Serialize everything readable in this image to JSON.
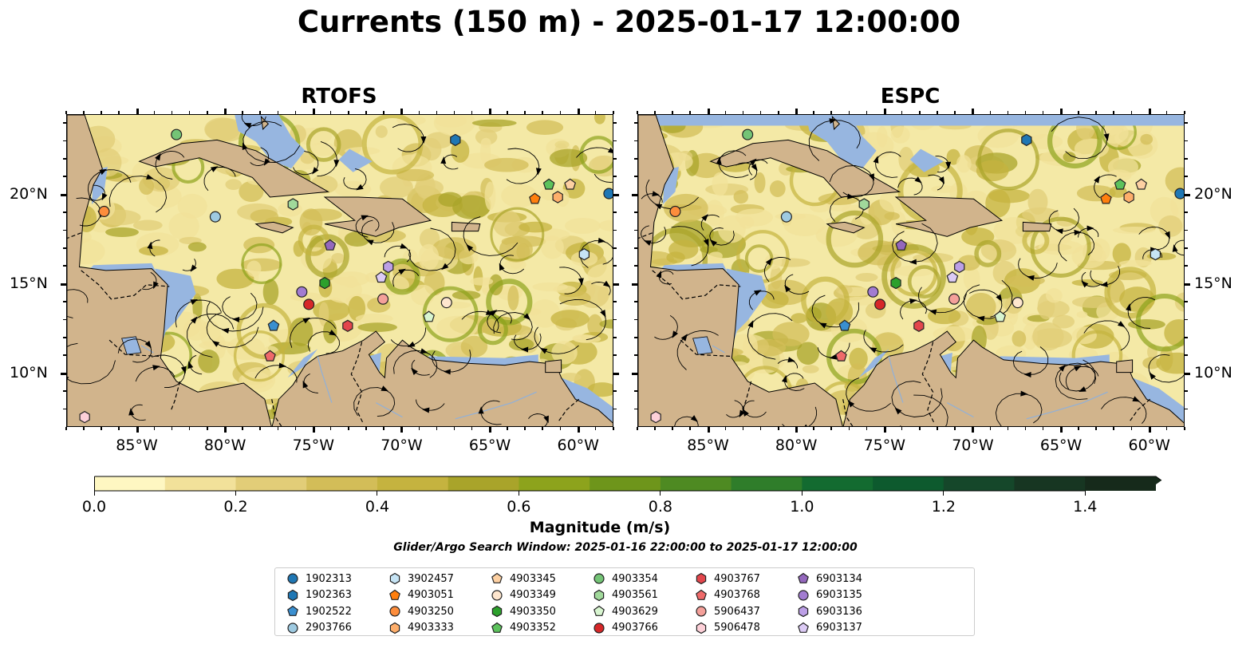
{
  "title": "Currents (150 m) - 2025-01-17 12:00:00",
  "panels": [
    {
      "title": "RTOFS"
    },
    {
      "title": "ESPC"
    }
  ],
  "axes": {
    "x_ticks": [
      "85°W",
      "80°W",
      "75°W",
      "70°W",
      "65°W",
      "60°W"
    ],
    "y_ticks": [
      "20°N",
      "15°N",
      "10°N"
    ]
  },
  "colorbar": {
    "label": "Magnitude (m/s)",
    "ticks": [
      "0.0",
      "0.2",
      "0.4",
      "0.6",
      "0.8",
      "1.0",
      "1.2",
      "1.4"
    ],
    "range": [
      0,
      1.5
    ],
    "extend": "max",
    "colors": [
      "#fef7c2",
      "#f2e19a",
      "#e2cd78",
      "#d3bd58",
      "#c5b33f",
      "#a9a42a",
      "#8da31c",
      "#6e951b",
      "#4e8a22",
      "#2f7d2a",
      "#136b30",
      "#0d5a2e",
      "#15472a",
      "#173622",
      "#162a1b"
    ]
  },
  "search_window": "Glider/Argo Search Window: 2025-01-16 22:00:00 to 2025-01-17 12:00:00",
  "colors": {
    "ocean": "#f4e9a6",
    "land": "#d1b48c",
    "shallow": "#97b6e0"
  },
  "chart_data": {
    "type": "map",
    "projection": "equirectangular",
    "xlim_lon": [
      -89.0,
      -58.0
    ],
    "ylim_lat": [
      7.0,
      24.5
    ],
    "variable": "current magnitude at 150 m",
    "models": [
      "RTOFS",
      "ESPC"
    ],
    "markers": [
      {
        "id": "1902313",
        "shape": "circle",
        "color": "#1f77b4",
        "lon": -58.3,
        "lat": 20.1
      },
      {
        "id": "1902363",
        "shape": "hexagon",
        "color": "#1f77b4",
        "lon": -67.0,
        "lat": 23.1
      },
      {
        "id": "1902522",
        "shape": "pentagon",
        "color": "#3a8fd0",
        "lon": -77.3,
        "lat": 12.7
      },
      {
        "id": "2903766",
        "shape": "circle",
        "color": "#9ecae1",
        "lon": -80.6,
        "lat": 18.8
      },
      {
        "id": "3902457",
        "shape": "hexagon",
        "color": "#c6e4f5",
        "lon": -59.7,
        "lat": 16.7
      },
      {
        "id": "4903051",
        "shape": "pentagon",
        "color": "#ff7f0e",
        "lon": -62.5,
        "lat": 19.8
      },
      {
        "id": "4903250",
        "shape": "circle",
        "color": "#fd8d3c",
        "lon": -86.9,
        "lat": 19.1
      },
      {
        "id": "4903333",
        "shape": "hexagon",
        "color": "#fdae6b",
        "lon": -61.2,
        "lat": 19.9
      },
      {
        "id": "4903345",
        "shape": "pentagon",
        "color": "#fdd0a2",
        "lon": -60.5,
        "lat": 20.6
      },
      {
        "id": "4903349",
        "shape": "circle",
        "color": "#fee6ce",
        "lon": -67.5,
        "lat": 14.0
      },
      {
        "id": "4903350",
        "shape": "hexagon",
        "color": "#2ca02c",
        "lon": -74.4,
        "lat": 15.1
      },
      {
        "id": "4903352",
        "shape": "pentagon",
        "color": "#5cc25c",
        "lon": -61.7,
        "lat": 20.6
      },
      {
        "id": "4903354",
        "shape": "circle",
        "color": "#74c476",
        "lon": -82.8,
        "lat": 23.4
      },
      {
        "id": "4903561",
        "shape": "hexagon",
        "color": "#a1d99b",
        "lon": -76.2,
        "lat": 19.5
      },
      {
        "id": "4903629",
        "shape": "pentagon",
        "color": "#d8f5d0",
        "lon": -68.5,
        "lat": 13.2
      },
      {
        "id": "4903766",
        "shape": "circle",
        "color": "#d62728",
        "lon": -75.3,
        "lat": 13.9
      },
      {
        "id": "4903767",
        "shape": "hexagon",
        "color": "#e3464c",
        "lon": -73.1,
        "lat": 12.7
      },
      {
        "id": "4903768",
        "shape": "pentagon",
        "color": "#ef6a6a",
        "lon": -77.5,
        "lat": 11.0
      },
      {
        "id": "5906437",
        "shape": "circle",
        "color": "#f4a09a",
        "lon": -71.1,
        "lat": 14.2
      },
      {
        "id": "5906478",
        "shape": "hexagon",
        "color": "#fdd0d8",
        "lon": -88.0,
        "lat": 7.6
      },
      {
        "id": "6903134",
        "shape": "pentagon",
        "color": "#9467bd",
        "lon": -74.1,
        "lat": 17.2
      },
      {
        "id": "6903135",
        "shape": "circle",
        "color": "#a27cd1",
        "lon": -75.7,
        "lat": 14.6
      },
      {
        "id": "6903136",
        "shape": "hexagon",
        "color": "#bc9fe6",
        "lon": -70.8,
        "lat": 16.0
      },
      {
        "id": "6903137",
        "shape": "pentagon",
        "color": "#dccbf5",
        "lon": -71.2,
        "lat": 15.4
      }
    ]
  }
}
